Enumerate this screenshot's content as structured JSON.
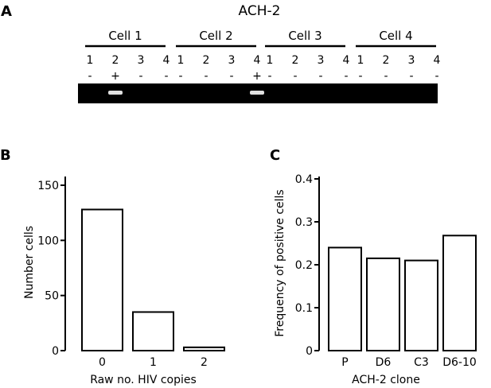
{
  "panel_a": {
    "letter": "A",
    "title": "ACH-2",
    "cells": [
      {
        "label": "Cell 1",
        "lanes": [
          "1",
          "2",
          "3",
          "4"
        ],
        "signs": [
          "-",
          "+",
          "-",
          "-"
        ],
        "bands": [
          false,
          true,
          false,
          false
        ]
      },
      {
        "label": "Cell 2",
        "lanes": [
          "1",
          "2",
          "3",
          "4"
        ],
        "signs": [
          "-",
          "-",
          "-",
          "+"
        ],
        "bands": [
          false,
          false,
          false,
          true
        ]
      },
      {
        "label": "Cell 3",
        "lanes": [
          "1",
          "2",
          "3",
          "4"
        ],
        "signs": [
          "-",
          "-",
          "-",
          "-"
        ],
        "bands": [
          false,
          false,
          false,
          false
        ]
      },
      {
        "label": "Cell 4",
        "lanes": [
          "1",
          "2",
          "3",
          "4"
        ],
        "signs": [
          "-",
          "-",
          "-",
          "-"
        ],
        "bands": [
          false,
          false,
          false,
          false
        ]
      }
    ],
    "colors": {
      "gel": "#000000",
      "band": "#e0e0e0"
    }
  },
  "panel_b": {
    "letter": "B",
    "chart_data": {
      "type": "bar",
      "categories": [
        "0",
        "1",
        "2"
      ],
      "values": [
        128,
        35,
        3
      ],
      "xlabel": "Raw no. HIV copies",
      "ylabel": "Number cells",
      "ylim": [
        0,
        150
      ],
      "yticks": [
        "0",
        "50",
        "100",
        "150"
      ],
      "grid": false
    }
  },
  "panel_c": {
    "letter": "C",
    "chart_data": {
      "type": "bar",
      "categories": [
        "P",
        "D6",
        "C3",
        "D6-10"
      ],
      "values": [
        0.24,
        0.215,
        0.21,
        0.268
      ],
      "xlabel": "ACH-2 clone",
      "ylabel": "Frequency of positive cells",
      "ylim": [
        0,
        0.4
      ],
      "yticks": [
        "0",
        "0.1",
        "0.2",
        "0.3",
        "0.4"
      ],
      "grid": false
    }
  }
}
